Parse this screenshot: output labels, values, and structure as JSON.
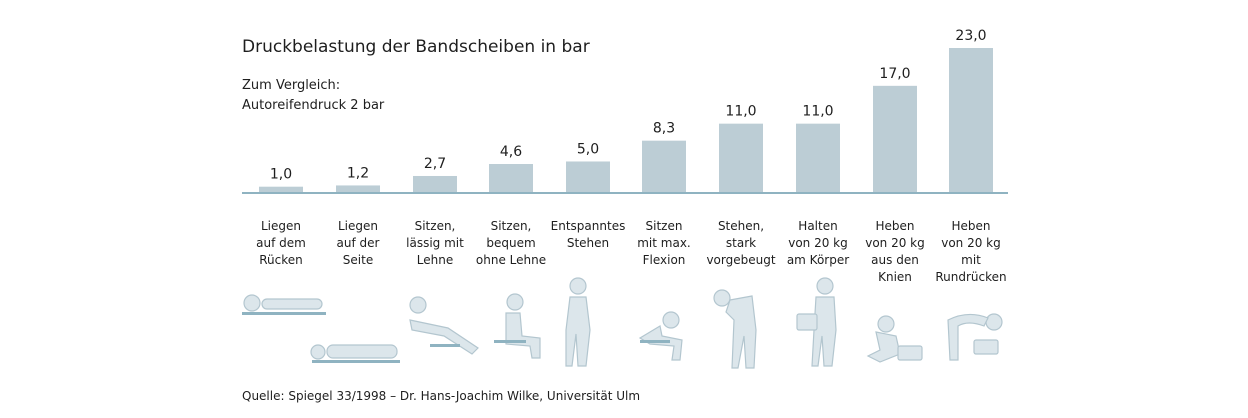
{
  "chart_data": {
    "type": "bar",
    "title": "Druckbelastung der Bandscheiben in bar",
    "subtitle": [
      "Zum Vergleich:",
      "Autoreifendruck 2 bar"
    ],
    "categories": [
      "Liegen auf dem Rücken",
      "Liegen auf der Seite",
      "Sitzen, lässig mit Lehne",
      "Sitzen, bequem ohne Lehne",
      "Entspanntes Stehen",
      "Sitzen mit max. Flexion",
      "Stehen, stark vorgebeugt",
      "Halten von 20 kg am Körper",
      "Heben von 20 kg aus den Knien",
      "Heben von 20 kg mit Rundrücken"
    ],
    "category_lines": [
      [
        "Liegen",
        "auf dem",
        "Rücken"
      ],
      [
        "Liegen",
        "auf der",
        "Seite"
      ],
      [
        "Sitzen,",
        "lässig mit",
        "Lehne"
      ],
      [
        "Sitzen,",
        "bequem",
        "ohne Lehne"
      ],
      [
        "Entspanntes",
        "Stehen"
      ],
      [
        "Sitzen",
        "mit max.",
        "Flexion"
      ],
      [
        "Stehen,",
        "stark",
        "vorgebeugt"
      ],
      [
        "Halten",
        "von 20 kg",
        "am Körper"
      ],
      [
        "Heben",
        "von 20 kg",
        "aus den",
        "Knien"
      ],
      [
        "Heben",
        "von 20 kg",
        "mit",
        "Rundrücken"
      ]
    ],
    "values": [
      1.0,
      1.2,
      2.7,
      4.6,
      5.0,
      8.3,
      11.0,
      11.0,
      17.0,
      23.0
    ],
    "value_labels": [
      "1,0",
      "1,2",
      "2,7",
      "4,6",
      "5,0",
      "8,3",
      "11,0",
      "11,0",
      "17,0",
      "23,0"
    ],
    "ylim": [
      0,
      23
    ],
    "xlabel": "",
    "ylabel": "",
    "grid": false,
    "legend": "none",
    "bar_color": "#bccdd5",
    "baseline_color": "#8fb3c1"
  },
  "pictograms": [
    "lying-on-back-icon",
    "lying-on-side-icon",
    "sitting-reclined-icon",
    "sitting-upright-icon",
    "standing-relaxed-icon",
    "sitting-bent-forward-icon",
    "standing-bent-forward-icon",
    "holding-weight-icon",
    "lifting-from-knees-icon",
    "lifting-round-back-icon"
  ],
  "source": "Quelle: Spiegel 33/1998 – Dr. Hans-Joachim Wilke, Universität Ulm"
}
